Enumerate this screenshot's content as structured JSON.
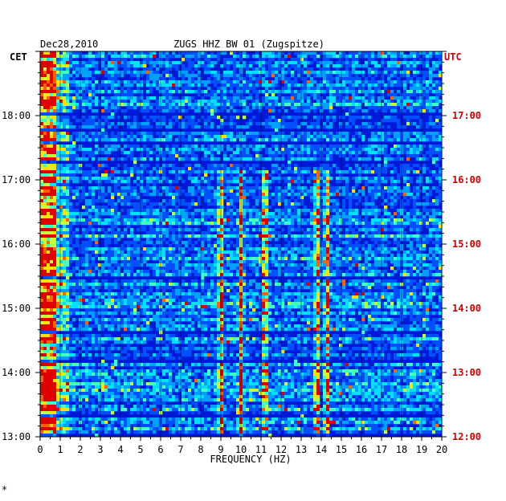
{
  "chart_data": {
    "type": "heatmap",
    "header": {
      "date": "Dec28,2010",
      "station": "ZUGS HHZ BW 01 (Zugspitze)"
    },
    "left_axis": {
      "title": "CET",
      "ticks": [
        "13:00",
        "14:00",
        "15:00",
        "16:00",
        "17:00",
        "18:00"
      ],
      "range": [
        "13:00",
        "19:00"
      ]
    },
    "right_axis": {
      "title": "UTC",
      "ticks": [
        "12:00",
        "13:00",
        "14:00",
        "15:00",
        "16:00",
        "17:00"
      ],
      "range": [
        "12:00",
        "18:00"
      ],
      "color": "#d40000"
    },
    "x_axis": {
      "label": "FREQUENCY (HZ)",
      "ticks": [
        0,
        1,
        2,
        3,
        4,
        5,
        6,
        7,
        8,
        9,
        10,
        11,
        12,
        13,
        14,
        15,
        16,
        17,
        18,
        19,
        20
      ],
      "range": [
        0,
        20
      ]
    },
    "colormap": [
      "#0000a0",
      "#0018d8",
      "#0050ff",
      "#00a0ff",
      "#00e0ff",
      "#40ffc0",
      "#c0ff40",
      "#ffe000",
      "#ff6000",
      "#e00000"
    ],
    "dominant_bands_hz": [
      0.3,
      9.0,
      10.0,
      11.2,
      13.8,
      14.3
    ],
    "footer_mark": "*"
  }
}
